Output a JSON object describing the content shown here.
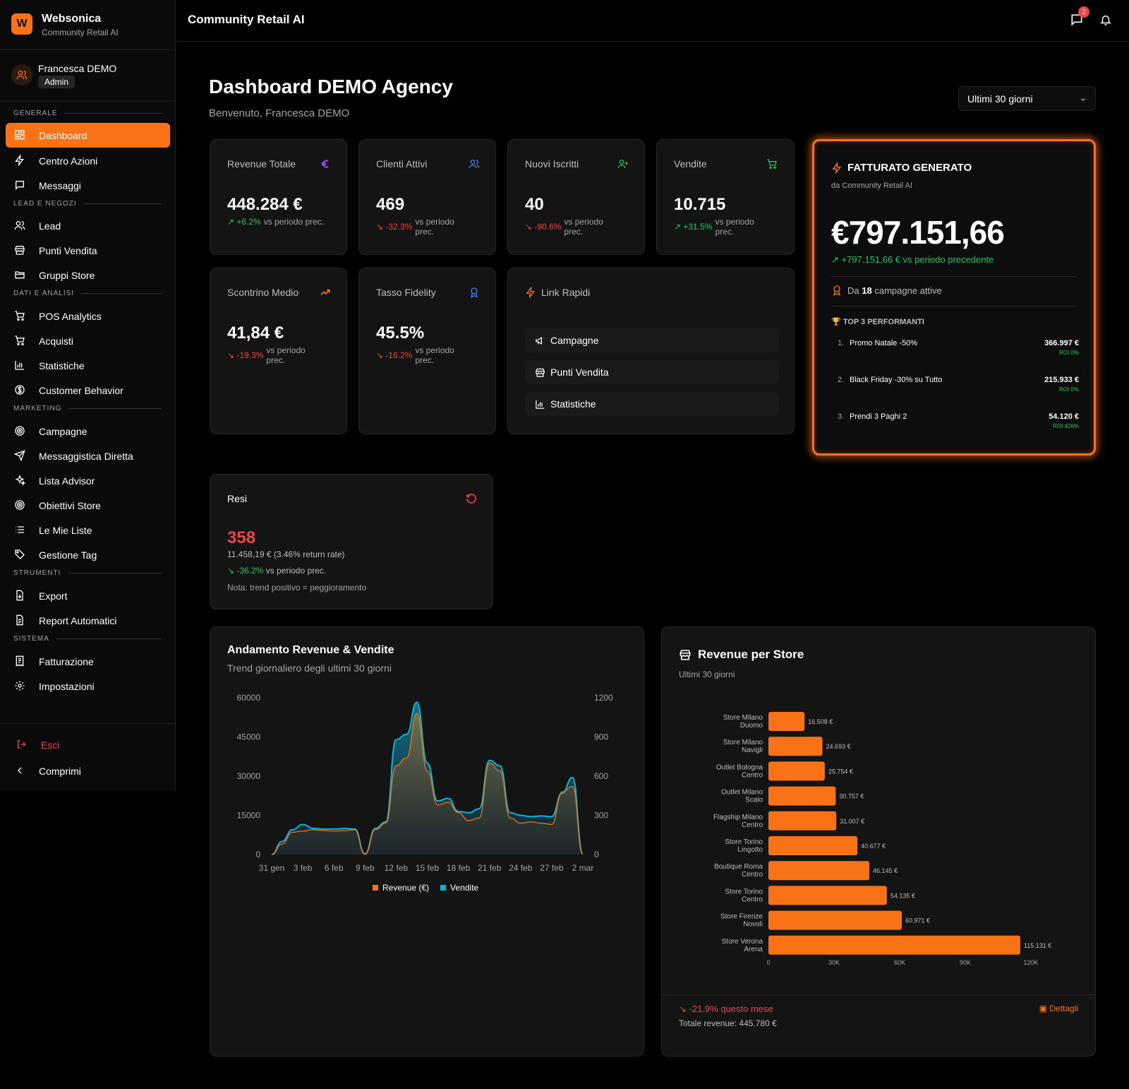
{
  "brand": {
    "name": "Websonica",
    "subtitle": "Community Retail AI",
    "logo_letter": "W"
  },
  "user": {
    "name": "Francesca DEMO",
    "role": "Admin"
  },
  "sidebar": {
    "sections": {
      "generale": "GENERALE",
      "lead": "LEAD E NEGOZI",
      "dati": "DATI E ANALISI",
      "marketing": "MARKETING",
      "strumenti": "STRUMENTI",
      "sistema": "SISTEMA"
    },
    "items": {
      "dashboard": "Dashboard",
      "centro_azioni": "Centro Azioni",
      "messaggi": "Messaggi",
      "lead": "Lead",
      "punti_vendita": "Punti Vendita",
      "gruppi_store": "Gruppi Store",
      "pos_analytics": "POS Analytics",
      "acquisti": "Acquisti",
      "statistiche": "Statistiche",
      "customer_behavior": "Customer Behavior",
      "campagne": "Campagne",
      "messaggistica": "Messaggistica Diretta",
      "lista_advisor": "Lista Advisor",
      "obiettivi_store": "Obiettivi Store",
      "le_mie_liste": "Le Mie Liste",
      "gestione_tag": "Gestione Tag",
      "export": "Export",
      "report_automatici": "Report Automatici",
      "fatturazione": "Fatturazione",
      "impostazioni": "Impostazioni"
    },
    "logout": "Esci",
    "collapse": "Comprimi"
  },
  "header": {
    "title": "Community Retail AI",
    "notifications": "2"
  },
  "page": {
    "title": "Dashboard DEMO Agency",
    "subtitle": "Benvenuto, Francesca DEMO",
    "period": "Ultimi 30 giorni"
  },
  "colors": {
    "accent": "#f97316",
    "positive": "#22c55e",
    "negative": "#ef4444",
    "revenue": "#f97316",
    "sales": "#06b6d4"
  },
  "kpis": {
    "revenue": {
      "title": "Revenue Totale",
      "value": "448.284 €",
      "delta": "+6.2%",
      "vs": "vs periodo prec.",
      "icon": "euro-icon"
    },
    "clienti": {
      "title": "Clienti Attivi",
      "value": "469",
      "delta": "-32.3%",
      "vs": "vs periodo prec.",
      "icon": "users-icon"
    },
    "iscritti": {
      "title": "Nuovi Iscritti",
      "value": "40",
      "delta": "-90.6%",
      "vs": "vs periodo prec.",
      "icon": "user-plus-icon"
    },
    "vendite": {
      "title": "Vendite",
      "value": "10.715",
      "delta": "+31.5%",
      "vs": "vs periodo prec.",
      "icon": "cart-icon"
    },
    "scontrino": {
      "title": "Scontrino Medio",
      "value": "41,84 €",
      "delta": "-19.3%",
      "vs": "vs periodo prec.",
      "icon": "trending-up-icon"
    },
    "fidelity": {
      "title": "Tasso Fidelity",
      "value": "45.5%",
      "delta": "-16.2%",
      "vs": "vs periodo prec.",
      "icon": "award-icon"
    }
  },
  "quick_links": {
    "title": "Link Rapidi",
    "items": [
      "Campagne",
      "Punti Vendita",
      "Statistiche"
    ]
  },
  "fatturato": {
    "title": "FATTURATO GENERATO",
    "subtitle": "da Community Retail AI",
    "value": "€797.151,66",
    "delta": "+797.151,66 € vs periodo precedente",
    "campaigns_prefix": "Da",
    "campaigns_count": "18",
    "campaigns_suffix": "campagne attive",
    "top_title": "TOP 3 PERFORMANTI",
    "top": [
      {
        "rank": "1.",
        "name": "Promo Natale -50%",
        "value": "366.997 €",
        "roi": "ROI 0%"
      },
      {
        "rank": "2.",
        "name": "Black Friday -30% su Tutto",
        "value": "215.933 €",
        "roi": "ROI 0%"
      },
      {
        "rank": "3.",
        "name": "Prendi 3 Paghi 2",
        "value": "54.120 €",
        "roi": "ROI 426%"
      }
    ]
  },
  "resi": {
    "title": "Resi",
    "value": "358",
    "detail": "11.458,19 € (3.46% return rate)",
    "delta": "-36.2%",
    "vs": "vs periodo prec.",
    "note": "Nota: trend positivo = peggioramento"
  },
  "trend_card": {
    "title": "Andamento Revenue & Vendite",
    "subtitle": "Trend giornaliero degli ultimi 30 giorni"
  },
  "store_card": {
    "title": "Revenue per Store",
    "subtitle": "Ultimi 30 giorni",
    "footer_delta": "-21.9% questo mese",
    "footer_total": "Totale revenue: 445.780 €",
    "details": "Dettagli"
  },
  "chart_data": [
    {
      "type": "area",
      "x": [
        "31 gen",
        "1 feb",
        "2 feb",
        "3 feb",
        "4 feb",
        "5 feb",
        "6 feb",
        "7 feb",
        "8 feb",
        "9 feb",
        "10 feb",
        "11 feb",
        "12 feb",
        "13 feb",
        "14 feb",
        "15 feb",
        "16 feb",
        "17 feb",
        "18 feb",
        "19 feb",
        "20 feb",
        "21 feb",
        "22 feb",
        "23 feb",
        "24 feb",
        "25 feb",
        "26 feb",
        "27 feb",
        "28 feb",
        "1 mar",
        "2 mar"
      ],
      "tick_labels": [
        "31 gen",
        "3 feb",
        "6 feb",
        "9 feb",
        "12 feb",
        "15 feb",
        "18 feb",
        "21 feb",
        "24 feb",
        "27 feb",
        "2 mar"
      ],
      "series": [
        {
          "name": "Revenue (€)",
          "axis": "left",
          "values": [
            0,
            4000,
            8500,
            9000,
            9500,
            9200,
            9000,
            9200,
            9500,
            100,
            9600,
            12000,
            34000,
            37000,
            54000,
            32000,
            19000,
            20000,
            16000,
            13000,
            14000,
            35000,
            32000,
            14000,
            12000,
            12500,
            12000,
            11500,
            24000,
            26000,
            200
          ]
        },
        {
          "name": "Vendite",
          "axis": "right",
          "values": [
            0,
            100,
            190,
            230,
            200,
            195,
            195,
            200,
            195,
            5,
            200,
            250,
            880,
            920,
            1165,
            700,
            410,
            430,
            330,
            320,
            350,
            720,
            680,
            320,
            300,
            290,
            295,
            290,
            470,
            590,
            5
          ]
        }
      ],
      "yleft": {
        "ticks": [
          "0",
          "15000",
          "30000",
          "45000",
          "60000"
        ],
        "range": [
          0,
          60000
        ]
      },
      "yright": {
        "ticks": [
          "0",
          "300",
          "600",
          "900",
          "1200"
        ],
        "range": [
          0,
          1200
        ]
      },
      "legend": "bottom"
    },
    {
      "type": "bar",
      "orientation": "horizontal",
      "categories": [
        [
          "Store Milano",
          "Duomo"
        ],
        [
          "Store Milano",
          "Navigli"
        ],
        [
          "Outlet Bologna",
          "Centro"
        ],
        [
          "Outlet Milano",
          "Scalo"
        ],
        [
          "Flagship Milano",
          "Centro"
        ],
        [
          "Store Torino",
          "Lingotto"
        ],
        [
          "Boutique Roma",
          "Centro"
        ],
        [
          "Store Torino",
          "Centro"
        ],
        [
          "Store Firenze",
          "Novoli"
        ],
        [
          "Store Verona",
          "Arena"
        ]
      ],
      "values": [
        16508,
        24693,
        25754,
        30757,
        31007,
        40677,
        46145,
        54135,
        60971,
        115131
      ],
      "labels": [
        "16.508 €",
        "24.693 €",
        "25.754 €",
        "30.757 €",
        "31.007 €",
        "40.677 €",
        "46.145 €",
        "54.135 €",
        "60.971 €",
        "115.131 €"
      ],
      "x_ticks": [
        "0",
        "30K",
        "60K",
        "90K",
        "120K"
      ],
      "xlim": [
        0,
        120000
      ]
    }
  ]
}
